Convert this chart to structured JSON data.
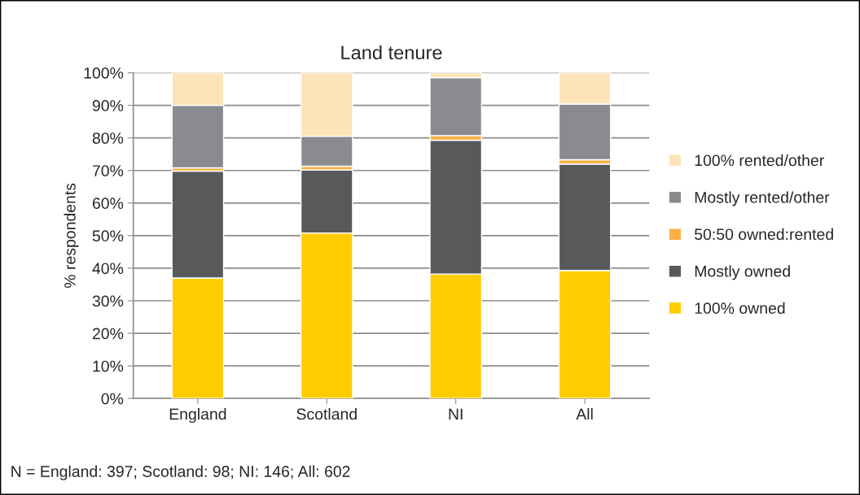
{
  "chart_data": {
    "type": "bar",
    "title": "Land tenure",
    "ylabel": "% respondents",
    "stacked": true,
    "categories": [
      "England",
      "Scotland",
      "NI",
      "All"
    ],
    "series": [
      {
        "name": "100% owned",
        "color": "#ffcc00",
        "values": [
          37,
          50.8,
          38.2,
          39.3
        ]
      },
      {
        "name": "Mostly owned",
        "color": "#58595b",
        "values": [
          32.8,
          19.4,
          41.1,
          32.7
        ]
      },
      {
        "name": "50:50 owned:rented",
        "color": "#fbb040",
        "values": [
          1.0,
          1.1,
          1.4,
          1.3
        ]
      },
      {
        "name": "Mostly rented/other",
        "color": "#8a8b8f",
        "values": [
          19.2,
          9.2,
          17.8,
          17.1
        ]
      },
      {
        "name": "100% rented/other",
        "color": "#fde4b8",
        "values": [
          10,
          19.5,
          1.5,
          9.6
        ]
      }
    ],
    "ylim": [
      0,
      100
    ],
    "yticks": [
      {
        "value": 0,
        "label": "0%"
      },
      {
        "value": 10,
        "label": "10%"
      },
      {
        "value": 20,
        "label": "20%"
      },
      {
        "value": 30,
        "label": "30%"
      },
      {
        "value": 40,
        "label": "40%"
      },
      {
        "value": 50,
        "label": "50%"
      },
      {
        "value": 60,
        "label": "60%"
      },
      {
        "value": 70,
        "label": "70%"
      },
      {
        "value": 80,
        "label": "80%"
      },
      {
        "value": 90,
        "label": "90%"
      },
      {
        "value": 100,
        "label": "100%"
      }
    ],
    "grid": "y",
    "legend": "right",
    "annotations": [
      "N = England: 397; Scotland: 98; NI: 146; All: 602"
    ]
  }
}
